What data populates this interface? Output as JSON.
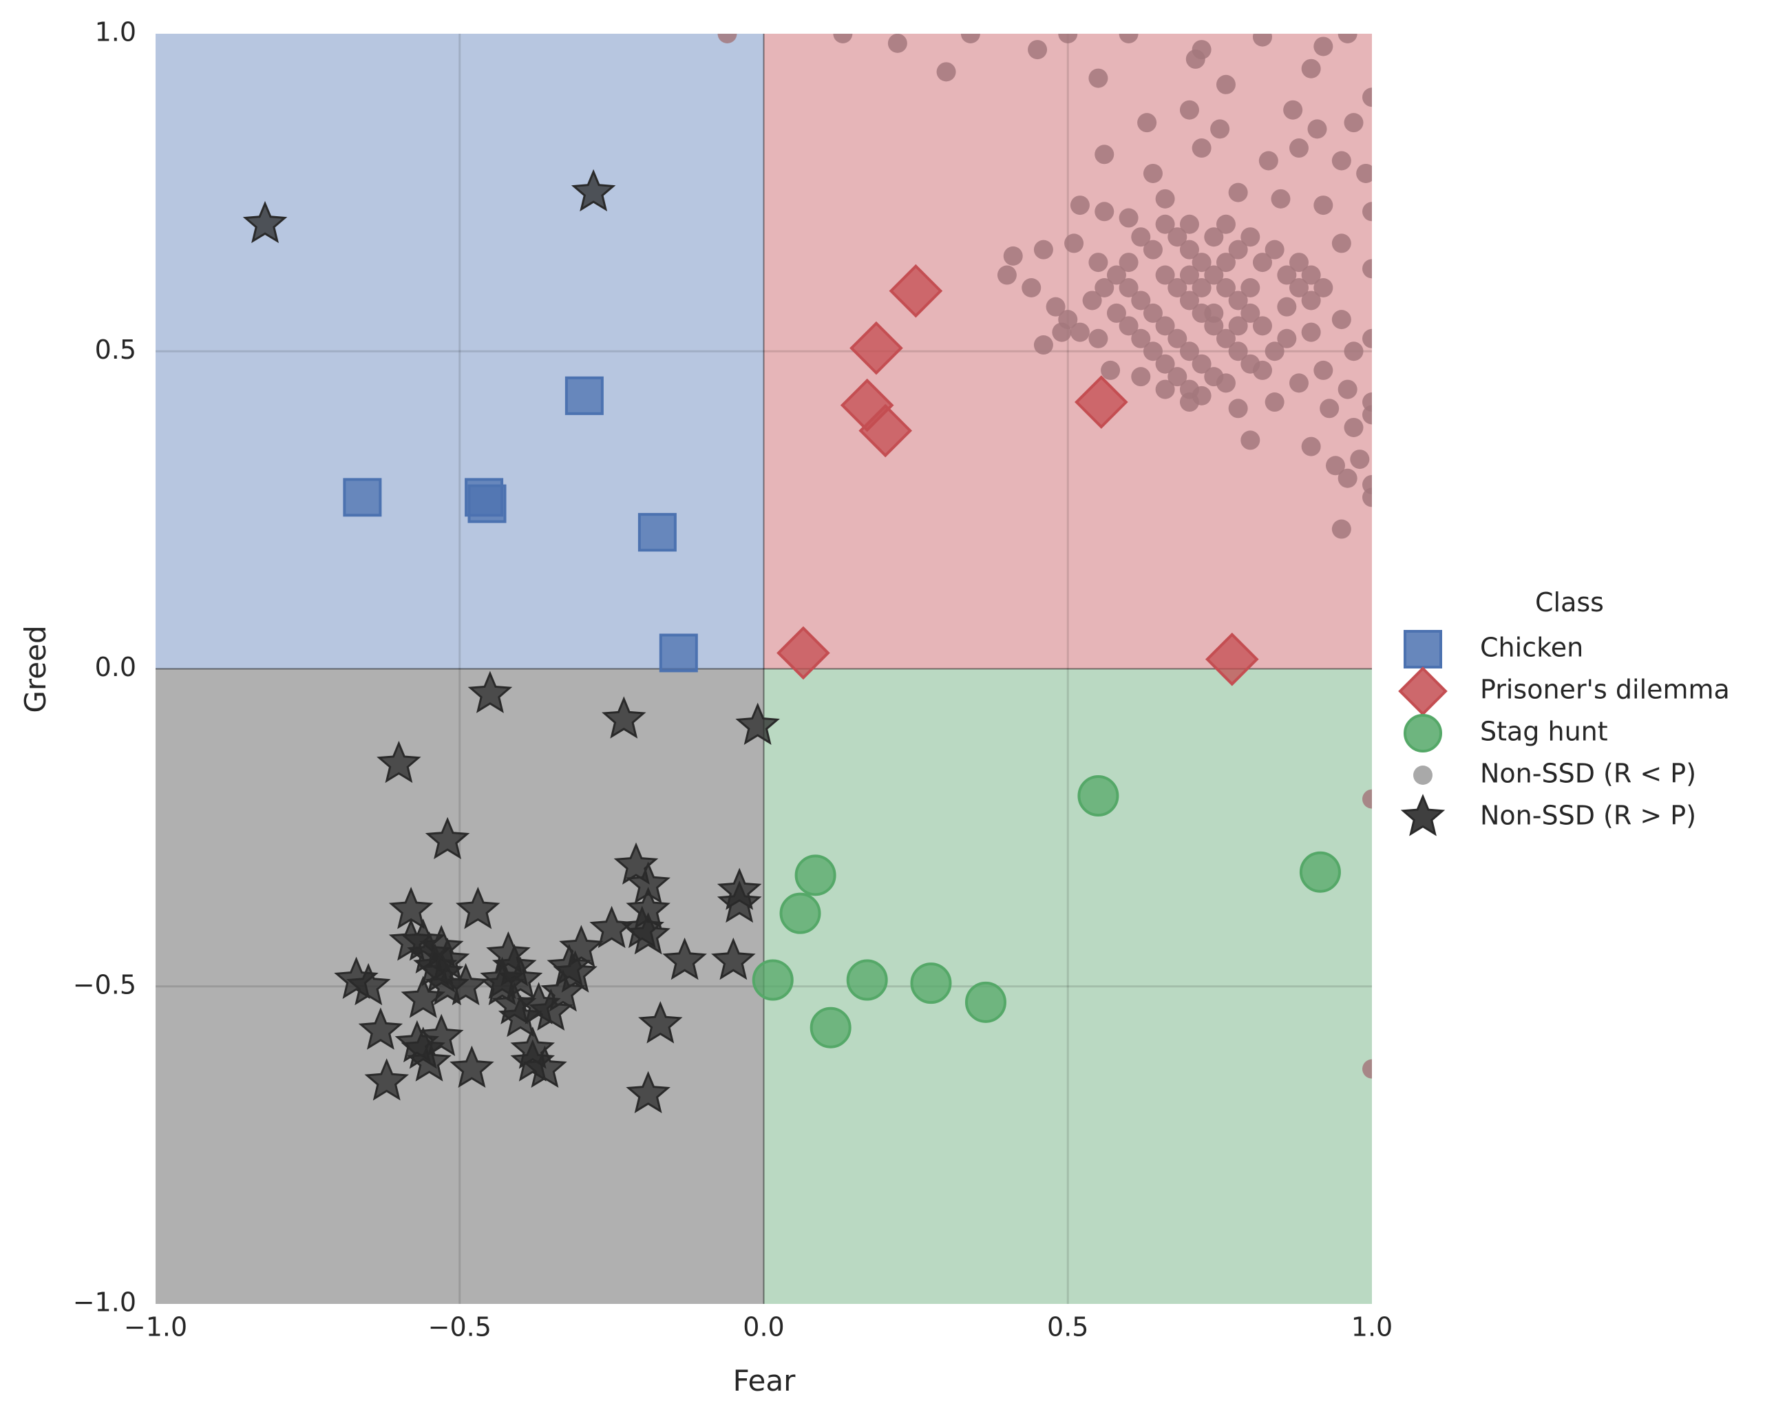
{
  "chart_data": {
    "type": "scatter",
    "xlabel": "Fear",
    "ylabel": "Greed",
    "xlim": [
      -1.0,
      1.0
    ],
    "ylim": [
      -1.0,
      1.0
    ],
    "x_ticks": [
      "−1.0",
      "−0.5",
      "0.0",
      "0.5",
      "1.0"
    ],
    "y_ticks": [
      "1.0",
      "0.5",
      "0.0",
      "−0.5",
      "−1.0"
    ],
    "grid": true,
    "legend_position": "right-center",
    "legend_title": "Class",
    "quadrants": [
      {
        "name": "Chicken",
        "x": [
          -1,
          0
        ],
        "y": [
          0,
          1
        ],
        "color": "#b7c6e0"
      },
      {
        "name": "Prisoner's dilemma",
        "x": [
          0,
          1
        ],
        "y": [
          0,
          1
        ],
        "color": "#e6b5b8"
      },
      {
        "name": "Stag hunt",
        "x": [
          0,
          1
        ],
        "y": [
          -1,
          0
        ],
        "color": "#bad9c2"
      },
      {
        "name": "Non-SSD",
        "x": [
          -1,
          0
        ],
        "y": [
          -1,
          0
        ],
        "color": "#b0b0b0"
      }
    ],
    "series": [
      {
        "name": "Chicken",
        "marker": "square",
        "color": "#4c72b0",
        "points": [
          [
            -0.66,
            0.27
          ],
          [
            -0.46,
            0.27
          ],
          [
            -0.455,
            0.26
          ],
          [
            -0.295,
            0.43
          ],
          [
            -0.175,
            0.215
          ],
          [
            -0.14,
            0.025
          ]
        ]
      },
      {
        "name": "Prisoner's dilemma",
        "marker": "diamond",
        "color": "#c44e52",
        "points": [
          [
            0.25,
            0.595
          ],
          [
            0.185,
            0.505
          ],
          [
            0.17,
            0.415
          ],
          [
            0.2,
            0.375
          ],
          [
            0.555,
            0.42
          ],
          [
            0.065,
            0.025
          ],
          [
            0.77,
            0.015
          ]
        ]
      },
      {
        "name": "Stag hunt",
        "marker": "circle",
        "color": "#55a868",
        "points": [
          [
            0.55,
            -0.2
          ],
          [
            0.915,
            -0.32
          ],
          [
            0.085,
            -0.325
          ],
          [
            0.06,
            -0.385
          ],
          [
            0.015,
            -0.49
          ],
          [
            0.17,
            -0.49
          ],
          [
            0.275,
            -0.495
          ],
          [
            0.365,
            -0.525
          ],
          [
            0.11,
            -0.565
          ]
        ]
      },
      {
        "name": "Non-SSD (R < P)",
        "marker": "small-circle",
        "color": "#a3787c",
        "points": [
          [
            -0.06,
            1.0
          ],
          [
            1.0,
            -0.205
          ],
          [
            1.0,
            -0.63
          ],
          [
            0.13,
            1.0
          ],
          [
            0.22,
            0.985
          ],
          [
            0.34,
            1.0
          ],
          [
            0.45,
            0.975
          ],
          [
            0.5,
            1.0
          ],
          [
            0.6,
            1.0
          ],
          [
            0.72,
            0.975
          ],
          [
            0.82,
            0.995
          ],
          [
            0.96,
            1.0
          ],
          [
            0.3,
            0.94
          ],
          [
            0.55,
            0.93
          ],
          [
            0.76,
            0.92
          ],
          [
            0.9,
            0.945
          ],
          [
            0.71,
            0.96
          ],
          [
            0.92,
            0.98
          ],
          [
            0.7,
            0.88
          ],
          [
            0.63,
            0.86
          ],
          [
            0.75,
            0.85
          ],
          [
            0.87,
            0.88
          ],
          [
            0.91,
            0.85
          ],
          [
            0.97,
            0.86
          ],
          [
            1.0,
            0.9
          ],
          [
            0.56,
            0.81
          ],
          [
            0.64,
            0.78
          ],
          [
            0.72,
            0.82
          ],
          [
            0.83,
            0.8
          ],
          [
            0.88,
            0.82
          ],
          [
            0.95,
            0.8
          ],
          [
            0.99,
            0.78
          ],
          [
            0.52,
            0.73
          ],
          [
            0.56,
            0.72
          ],
          [
            0.6,
            0.71
          ],
          [
            0.66,
            0.74
          ],
          [
            0.78,
            0.75
          ],
          [
            0.85,
            0.74
          ],
          [
            0.92,
            0.73
          ],
          [
            1.0,
            0.72
          ],
          [
            0.41,
            0.65
          ],
          [
            0.46,
            0.66
          ],
          [
            0.51,
            0.67
          ],
          [
            0.55,
            0.64
          ],
          [
            0.95,
            0.67
          ],
          [
            1.0,
            0.63
          ],
          [
            0.4,
            0.62
          ],
          [
            0.44,
            0.6
          ],
          [
            0.48,
            0.57
          ],
          [
            0.5,
            0.55
          ],
          [
            0.52,
            0.53
          ],
          [
            0.49,
            0.53
          ],
          [
            0.46,
            0.51
          ],
          [
            0.55,
            0.52
          ],
          [
            0.9,
            0.53
          ],
          [
            0.95,
            0.55
          ],
          [
            1.0,
            0.52
          ],
          [
            0.97,
            0.5
          ],
          [
            0.57,
            0.47
          ],
          [
            0.62,
            0.46
          ],
          [
            0.66,
            0.44
          ],
          [
            0.7,
            0.42
          ],
          [
            0.78,
            0.41
          ],
          [
            0.84,
            0.42
          ],
          [
            0.88,
            0.45
          ],
          [
            0.92,
            0.47
          ],
          [
            0.96,
            0.44
          ],
          [
            1.0,
            0.42
          ],
          [
            0.93,
            0.41
          ],
          [
            0.97,
            0.38
          ],
          [
            1.0,
            0.4
          ],
          [
            0.8,
            0.36
          ],
          [
            0.9,
            0.35
          ],
          [
            0.94,
            0.32
          ],
          [
            0.98,
            0.33
          ],
          [
            0.96,
            0.3
          ],
          [
            1.0,
            0.29
          ],
          [
            1.0,
            0.27
          ],
          [
            0.95,
            0.22
          ],
          [
            0.68,
            0.68
          ],
          [
            0.7,
            0.66
          ],
          [
            0.72,
            0.64
          ],
          [
            0.74,
            0.62
          ],
          [
            0.76,
            0.6
          ],
          [
            0.78,
            0.58
          ],
          [
            0.8,
            0.56
          ],
          [
            0.82,
            0.54
          ],
          [
            0.66,
            0.62
          ],
          [
            0.68,
            0.6
          ],
          [
            0.7,
            0.58
          ],
          [
            0.72,
            0.56
          ],
          [
            0.74,
            0.54
          ],
          [
            0.76,
            0.52
          ],
          [
            0.78,
            0.5
          ],
          [
            0.8,
            0.48
          ],
          [
            0.6,
            0.6
          ],
          [
            0.62,
            0.58
          ],
          [
            0.64,
            0.56
          ],
          [
            0.66,
            0.54
          ],
          [
            0.68,
            0.52
          ],
          [
            0.7,
            0.5
          ],
          [
            0.72,
            0.48
          ],
          [
            0.74,
            0.46
          ],
          [
            0.58,
            0.56
          ],
          [
            0.6,
            0.54
          ],
          [
            0.62,
            0.52
          ],
          [
            0.64,
            0.5
          ],
          [
            0.66,
            0.48
          ],
          [
            0.68,
            0.46
          ],
          [
            0.7,
            0.44
          ],
          [
            0.7,
            0.7
          ],
          [
            0.74,
            0.68
          ],
          [
            0.78,
            0.66
          ],
          [
            0.82,
            0.64
          ],
          [
            0.86,
            0.62
          ],
          [
            0.88,
            0.6
          ],
          [
            0.86,
            0.57
          ],
          [
            0.84,
            0.5
          ],
          [
            0.64,
            0.66
          ],
          [
            0.6,
            0.64
          ],
          [
            0.56,
            0.6
          ],
          [
            0.54,
            0.58
          ],
          [
            0.58,
            0.62
          ],
          [
            0.62,
            0.68
          ],
          [
            0.66,
            0.7
          ],
          [
            0.76,
            0.7
          ],
          [
            0.8,
            0.68
          ],
          [
            0.84,
            0.66
          ],
          [
            0.88,
            0.64
          ],
          [
            0.9,
            0.62
          ],
          [
            0.92,
            0.6
          ],
          [
            0.9,
            0.58
          ],
          [
            0.86,
            0.52
          ],
          [
            0.82,
            0.47
          ],
          [
            0.76,
            0.45
          ],
          [
            0.72,
            0.43
          ],
          [
            0.74,
            0.56
          ],
          [
            0.7,
            0.62
          ],
          [
            0.72,
            0.6
          ],
          [
            0.76,
            0.64
          ],
          [
            0.8,
            0.6
          ],
          [
            0.78,
            0.54
          ]
        ]
      },
      {
        "name": "Non-SSD (R > P)",
        "marker": "star",
        "color": "#2a2a2a",
        "points": [
          [
            -0.82,
            0.7
          ],
          [
            -0.28,
            0.75
          ],
          [
            -0.45,
            -0.04
          ],
          [
            -0.23,
            -0.08
          ],
          [
            -0.01,
            -0.09
          ],
          [
            -0.6,
            -0.15
          ],
          [
            -0.52,
            -0.27
          ],
          [
            -0.21,
            -0.31
          ],
          [
            -0.19,
            -0.34
          ],
          [
            -0.04,
            -0.35
          ],
          [
            -0.04,
            -0.37
          ],
          [
            -0.58,
            -0.38
          ],
          [
            -0.47,
            -0.38
          ],
          [
            -0.19,
            -0.38
          ],
          [
            -0.25,
            -0.41
          ],
          [
            -0.2,
            -0.41
          ],
          [
            -0.19,
            -0.42
          ],
          [
            -0.58,
            -0.43
          ],
          [
            -0.56,
            -0.43
          ],
          [
            -0.53,
            -0.44
          ],
          [
            -0.3,
            -0.44
          ],
          [
            -0.55,
            -0.45
          ],
          [
            -0.52,
            -0.46
          ],
          [
            -0.42,
            -0.45
          ],
          [
            -0.13,
            -0.46
          ],
          [
            -0.05,
            -0.46
          ],
          [
            -0.54,
            -0.47
          ],
          [
            -0.41,
            -0.47
          ],
          [
            -0.32,
            -0.47
          ],
          [
            -0.31,
            -0.48
          ],
          [
            -0.53,
            -0.48
          ],
          [
            -0.43,
            -0.49
          ],
          [
            -0.4,
            -0.49
          ],
          [
            -0.67,
            -0.49
          ],
          [
            -0.65,
            -0.5
          ],
          [
            -0.52,
            -0.5
          ],
          [
            -0.49,
            -0.5
          ],
          [
            -0.43,
            -0.5
          ],
          [
            -0.33,
            -0.51
          ],
          [
            -0.56,
            -0.52
          ],
          [
            -0.41,
            -0.53
          ],
          [
            -0.37,
            -0.53
          ],
          [
            -0.35,
            -0.54
          ],
          [
            -0.4,
            -0.55
          ],
          [
            -0.17,
            -0.56
          ],
          [
            -0.63,
            -0.57
          ],
          [
            -0.53,
            -0.58
          ],
          [
            -0.57,
            -0.59
          ],
          [
            -0.56,
            -0.6
          ],
          [
            -0.38,
            -0.6
          ],
          [
            -0.38,
            -0.62
          ],
          [
            -0.55,
            -0.62
          ],
          [
            -0.48,
            -0.63
          ],
          [
            -0.36,
            -0.63
          ],
          [
            -0.62,
            -0.65
          ],
          [
            -0.19,
            -0.67
          ]
        ]
      }
    ],
    "legend": [
      {
        "label": "Chicken",
        "marker": "square",
        "color": "#4c72b0"
      },
      {
        "label": "Prisoner's dilemma",
        "marker": "diamond",
        "color": "#c44e52"
      },
      {
        "label": "Stag hunt",
        "marker": "circle",
        "color": "#55a868"
      },
      {
        "label": "Non-SSD (R < P)",
        "marker": "small-circle",
        "color": "#9a9a9a"
      },
      {
        "label": "Non-SSD (R > P)",
        "marker": "star",
        "color": "#2a2a2a"
      }
    ]
  }
}
